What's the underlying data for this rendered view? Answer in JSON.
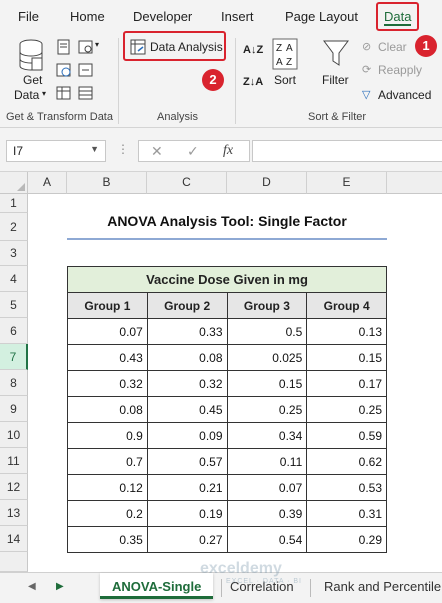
{
  "ribbon_tabs": [
    "File",
    "Home",
    "Developer",
    "Insert",
    "Page Layout",
    "Data"
  ],
  "ribbon": {
    "get_data": "Get",
    "get_data2": "Data",
    "data_analysis": "Data Analysis",
    "sort_label": "Sort",
    "filter_label": "Filter",
    "clear_label": "Clear",
    "reapply_label": "Reapply",
    "advanced_label": "Advanced",
    "group_get_transform": "Get & Transform Data",
    "group_analysis": "Analysis",
    "group_sort_filter": "Sort & Filter",
    "badge1": "1",
    "badge2": "2",
    "sort_az_glyph": "A↓Z",
    "sort_za_glyph": "Z↓A"
  },
  "formula_bar": {
    "name_box": "I7",
    "cancel_glyph": "✕",
    "enter_glyph": "✓",
    "fx_glyph": "fx",
    "value": ""
  },
  "columns": [
    "A",
    "B",
    "C",
    "D",
    "E"
  ],
  "rows": [
    "1",
    "2",
    "3",
    "4",
    "5",
    "6",
    "7",
    "8",
    "9",
    "10",
    "11",
    "12",
    "13",
    "14"
  ],
  "sheet": {
    "title": "ANOVA Analysis Tool: Single Factor",
    "banner": "Vaccine Dose Given in mg",
    "headers": [
      "Group 1",
      "Group 2",
      "Group 3",
      "Group 4"
    ],
    "data": [
      [
        "0.07",
        "0.33",
        "0.5",
        "0.13"
      ],
      [
        "0.43",
        "0.08",
        "0.025",
        "0.15"
      ],
      [
        "0.32",
        "0.32",
        "0.15",
        "0.17"
      ],
      [
        "0.08",
        "0.45",
        "0.25",
        "0.25"
      ],
      [
        "0.9",
        "0.09",
        "0.34",
        "0.59"
      ],
      [
        "0.7",
        "0.57",
        "0.11",
        "0.62"
      ],
      [
        "0.12",
        "0.21",
        "0.07",
        "0.53"
      ],
      [
        "0.2",
        "0.19",
        "0.39",
        "0.31"
      ],
      [
        "0.35",
        "0.27",
        "0.54",
        "0.29"
      ]
    ]
  },
  "sheet_tabs": [
    "ANOVA-Single",
    "Correlation",
    "Rank and Percentile"
  ],
  "watermark": "exceldemy",
  "watermark_sub": "EXCEL · DATA · BI",
  "accent_color": "#1e6c3a",
  "highlight_color": "#d9232e"
}
